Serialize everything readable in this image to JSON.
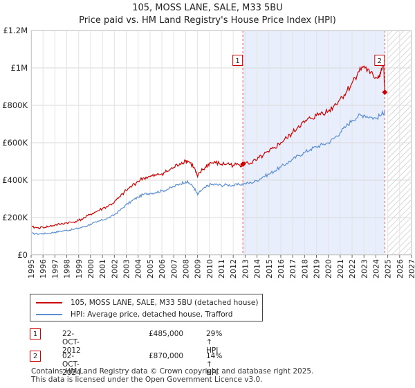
{
  "title": "105, MOSS LANE, SALE, M33 5BU",
  "subtitle": "Price paid vs. HM Land Registry's House Price Index (HPI)",
  "chart_data": {
    "type": "line",
    "title": "105, MOSS LANE, SALE, M33 5BU",
    "subtitle": "Price paid vs. HM Land Registry's House Price Index (HPI)",
    "xlim": [
      1995,
      2027
    ],
    "ylim": [
      0,
      1200000
    ],
    "x_ticks": [
      "1995",
      "1996",
      "1997",
      "1998",
      "1999",
      "2000",
      "2001",
      "2002",
      "2003",
      "2004",
      "2005",
      "2006",
      "2007",
      "2008",
      "2009",
      "2010",
      "2011",
      "2012",
      "2013",
      "2014",
      "2015",
      "2016",
      "2017",
      "2018",
      "2019",
      "2020",
      "2021",
      "2022",
      "2023",
      "2024",
      "2025",
      "2026",
      "2027"
    ],
    "y_ticks": [
      {
        "value": 0,
        "label": "£0"
      },
      {
        "value": 200000,
        "label": "£200K"
      },
      {
        "value": 400000,
        "label": "£400K"
      },
      {
        "value": 600000,
        "label": "£600K"
      },
      {
        "value": 800000,
        "label": "£800K"
      },
      {
        "value": 1000000,
        "label": "£1M"
      },
      {
        "value": 1200000,
        "label": "£1.2M"
      }
    ],
    "grid": true,
    "colors": {
      "property": "#cc0000",
      "hpi": "#5b8fd4",
      "shade": "#e8eefb",
      "marker_line": "#e06060",
      "hatch": "#bbbbbb"
    },
    "series": [
      {
        "name": "105, MOSS LANE, SALE, M33 5BU (detached house)",
        "color": "#cc0000",
        "x": [
          1995,
          1995.5,
          1996,
          1996.5,
          1997,
          1997.5,
          1998,
          1998.5,
          1999,
          1999.5,
          2000,
          2000.5,
          2001,
          2001.5,
          2002,
          2002.5,
          2003,
          2003.5,
          2004,
          2004.5,
          2005,
          2005.5,
          2006,
          2006.5,
          2007,
          2007.5,
          2008,
          2008.3,
          2008.7,
          2009,
          2009.3,
          2009.7,
          2010,
          2010.5,
          2011,
          2011.5,
          2012,
          2012.5,
          2012.81,
          2013,
          2013.5,
          2014,
          2014.5,
          2015,
          2015.5,
          2016,
          2016.5,
          2017,
          2017.5,
          2018,
          2018.5,
          2019,
          2019.5,
          2020,
          2020.5,
          2021,
          2021.5,
          2022,
          2022.5,
          2023,
          2023.5,
          2024,
          2024.3,
          2024.5,
          2024.62,
          2024.75
        ],
        "values": [
          150000,
          145000,
          148000,
          152000,
          160000,
          165000,
          172000,
          175000,
          185000,
          198000,
          218000,
          232000,
          248000,
          262000,
          282000,
          312000,
          345000,
          370000,
          395000,
          412000,
          418000,
          425000,
          435000,
          448000,
          468000,
          488000,
          505000,
          498000,
          468000,
          418000,
          448000,
          470000,
          490000,
          493000,
          485000,
          488000,
          480000,
          482000,
          485000,
          490000,
          492000,
          508000,
          532000,
          550000,
          575000,
          600000,
          625000,
          652000,
          690000,
          708000,
          730000,
          745000,
          762000,
          768000,
          800000,
          835000,
          870000,
          920000,
          978000,
          1010000,
          970000,
          950000,
          960000,
          990000,
          1060000,
          870000
        ]
      },
      {
        "name": "HPI: Average price, detached house, Trafford",
        "color": "#5b8fd4",
        "x": [
          1995,
          1995.5,
          1996,
          1996.5,
          1997,
          1997.5,
          1998,
          1998.5,
          1999,
          1999.5,
          2000,
          2000.5,
          2001,
          2001.5,
          2002,
          2002.5,
          2003,
          2003.5,
          2004,
          2004.5,
          2005,
          2005.5,
          2006,
          2006.5,
          2007,
          2007.5,
          2008,
          2008.3,
          2008.7,
          2009,
          2009.3,
          2009.7,
          2010,
          2010.5,
          2011,
          2011.5,
          2012,
          2012.5,
          2013,
          2013.5,
          2014,
          2014.5,
          2015,
          2015.5,
          2016,
          2016.5,
          2017,
          2017.5,
          2018,
          2018.5,
          2019,
          2019.5,
          2020,
          2020.5,
          2021,
          2021.5,
          2022,
          2022.5,
          2023,
          2023.5,
          2024,
          2024.5,
          2024.75
        ],
        "values": [
          115000,
          113000,
          114000,
          116000,
          122000,
          127000,
          132000,
          136000,
          143000,
          152000,
          165000,
          175000,
          187000,
          198000,
          215000,
          240000,
          268000,
          290000,
          310000,
          325000,
          330000,
          335000,
          342000,
          352000,
          365000,
          380000,
          392000,
          385000,
          360000,
          322000,
          345000,
          362000,
          375000,
          377000,
          372000,
          375000,
          372000,
          376000,
          382000,
          386000,
          398000,
          418000,
          432000,
          450000,
          470000,
          490000,
          510000,
          532000,
          548000,
          565000,
          578000,
          590000,
          600000,
          625000,
          655000,
          688000,
          720000,
          742000,
          748000,
          738000,
          730000,
          752000,
          770000
        ]
      }
    ],
    "sales": [
      {
        "id": "1",
        "x": 2012.81,
        "value": 485000,
        "date": "22-OCT-2012",
        "price": "£485,000",
        "hpi": "29% ↑ HPI"
      },
      {
        "id": "2",
        "x": 2024.75,
        "value": 870000,
        "date": "02-OCT-2024",
        "price": "£870,000",
        "hpi": "14% ↑ HPI"
      }
    ],
    "hatch_from": 2024.95
  },
  "legend": {
    "property_label": "105, MOSS LANE, SALE, M33 5BU (detached house)",
    "hpi_label": "HPI: Average price, detached house, Trafford"
  },
  "footer": {
    "line1": "Contains HM Land Registry data © Crown copyright and database right 2025.",
    "line2": "This data is licensed under the Open Government Licence v3.0."
  }
}
